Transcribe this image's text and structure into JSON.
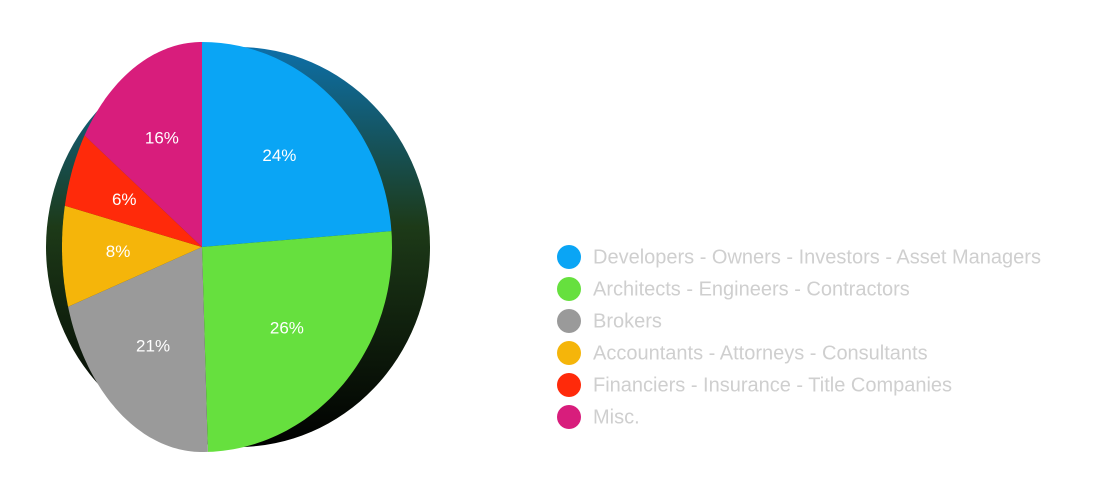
{
  "chart_data": {
    "type": "pie",
    "categories": [
      "Developers - Owners - Investors - Asset Managers",
      "Architects - Engineers - Contractors",
      "Brokers",
      "Accountants - Attorneys - Consultants",
      "Financiers - Insurance - Title Companies",
      "Misc."
    ],
    "values": [
      24,
      26,
      21,
      8,
      6,
      16
    ],
    "value_labels": [
      "24%",
      "26%",
      "21%",
      "8%",
      "6%",
      "16%"
    ],
    "colors": [
      "#0aa5f5",
      "#66e03e",
      "#9a9a9a",
      "#f5b50a",
      "#ff2a0a",
      "#d81d7c"
    ],
    "legend": "right"
  }
}
